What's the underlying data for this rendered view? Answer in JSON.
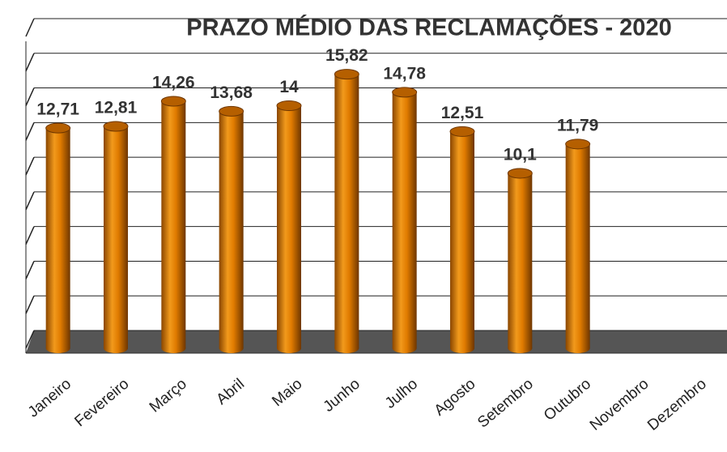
{
  "chart_data": {
    "type": "bar",
    "title": "PRAZO MÉDIO DAS RECLAMAÇÕES - 2020",
    "categories": [
      "Janeiro",
      "Fevereiro",
      "Março",
      "Abril",
      "Maio",
      "Junho",
      "Julho",
      "Agosto",
      "Setembro",
      "Outubro",
      "Novembro",
      "Dezembro"
    ],
    "values": [
      12.71,
      12.81,
      14.26,
      13.68,
      14,
      15.82,
      14.78,
      12.51,
      10.1,
      11.79,
      null,
      null
    ],
    "value_labels": [
      "12,71",
      "12,81",
      "14,26",
      "13,68",
      "14",
      "15,82",
      "14,78",
      "12,51",
      "10,1",
      "11,79",
      null,
      null
    ],
    "color": "#e07b00",
    "ylim": [
      0,
      18
    ],
    "yticks": [
      0,
      2,
      4,
      6,
      8,
      10,
      12,
      14,
      16,
      18
    ],
    "grid": true
  }
}
